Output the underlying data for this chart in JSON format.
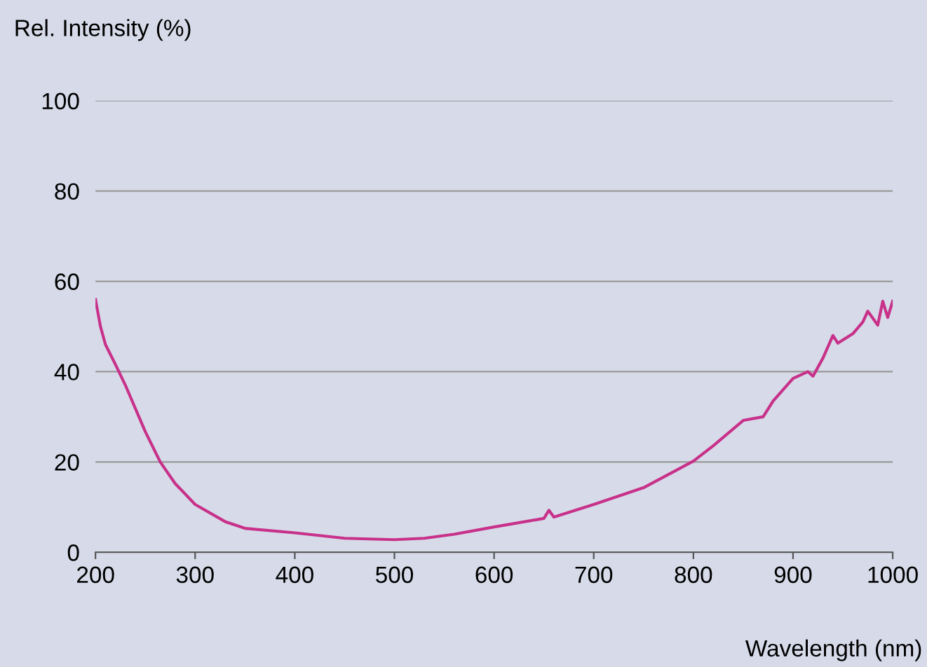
{
  "chart_data": {
    "type": "line",
    "xlabel": "Wavelength (nm)",
    "ylabel": "Rel. Intensity (%)",
    "x": [
      200,
      205,
      210,
      220,
      230,
      250,
      265,
      280,
      300,
      330,
      350,
      400,
      450,
      500,
      530,
      560,
      600,
      650,
      655,
      660,
      700,
      750,
      800,
      820,
      850,
      870,
      880,
      900,
      915,
      920,
      930,
      940,
      945,
      960,
      970,
      975,
      985,
      990,
      995,
      1000
    ],
    "series": [
      {
        "color": "#c8318a",
        "values": [
          56,
          50,
          46,
          41.6,
          37,
          26.7,
          20,
          15.2,
          10.6,
          6.8,
          5.3,
          4.3,
          3.1,
          2.8,
          3.1,
          4,
          5.6,
          7.5,
          9.3,
          7.8,
          10.6,
          14.3,
          20.2,
          23.6,
          29.2,
          30,
          33.5,
          38.5,
          40,
          39,
          43,
          48,
          46.3,
          48.4,
          51,
          53.4,
          50.3,
          55.6,
          52,
          55.6
        ]
      }
    ],
    "xlim": [
      200,
      1000
    ],
    "xticks": [
      200,
      300,
      400,
      500,
      600,
      700,
      800,
      900,
      1000
    ],
    "ylim": [
      0,
      100
    ],
    "yticks": [
      0,
      20,
      40,
      60,
      80,
      100
    ],
    "grid": "y",
    "legend": false,
    "line_style": "solid",
    "marker": "none"
  }
}
